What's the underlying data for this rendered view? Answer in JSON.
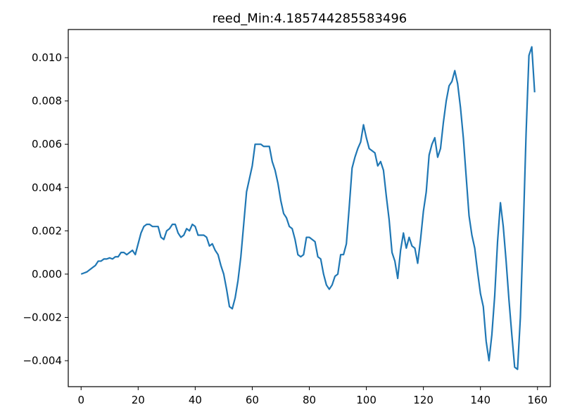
{
  "chart_data": {
    "type": "line",
    "title": "reed_Min:4.185744285583496",
    "xlabel": "",
    "ylabel": "",
    "xlim": [
      -4.5,
      164.5
    ],
    "ylim": [
      -0.0052,
      0.0113
    ],
    "x_ticks": [
      0,
      20,
      40,
      60,
      80,
      100,
      120,
      140,
      160
    ],
    "x_tick_labels": [
      "0",
      "20",
      "40",
      "60",
      "80",
      "100",
      "120",
      "140",
      "160"
    ],
    "y_ticks": [
      -0.004,
      -0.002,
      0.0,
      0.002,
      0.004,
      0.006,
      0.008,
      0.01
    ],
    "y_tick_labels": [
      "−0.004",
      "−0.002",
      "0.000",
      "0.002",
      "0.004",
      "0.006",
      "0.008",
      "0.010"
    ],
    "grid": false,
    "series": [
      {
        "color": "#1f77b4",
        "x": [
          0,
          1,
          2,
          3,
          4,
          5,
          6,
          7,
          8,
          9,
          10,
          11,
          12,
          13,
          14,
          15,
          16,
          17,
          18,
          19,
          20,
          21,
          22,
          23,
          24,
          25,
          26,
          27,
          28,
          29,
          30,
          31,
          32,
          33,
          34,
          35,
          36,
          37,
          38,
          39,
          40,
          41,
          42,
          43,
          44,
          45,
          46,
          47,
          48,
          49,
          50,
          51,
          52,
          53,
          54,
          55,
          56,
          57,
          58,
          59,
          60,
          61,
          62,
          63,
          64,
          65,
          66,
          67,
          68,
          69,
          70,
          71,
          72,
          73,
          74,
          75,
          76,
          77,
          78,
          79,
          80,
          81,
          82,
          83,
          84,
          85,
          86,
          87,
          88,
          89,
          90,
          91,
          92,
          93,
          94,
          95,
          96,
          97,
          98,
          99,
          100,
          101,
          102,
          103,
          104,
          105,
          106,
          107,
          108,
          109,
          110,
          111,
          112,
          113,
          114,
          115,
          116,
          117,
          118,
          119,
          120,
          121,
          122,
          123,
          124,
          125,
          126,
          127,
          128,
          129,
          130,
          131,
          132,
          133,
          134,
          135,
          136,
          137,
          138,
          139,
          140,
          141,
          142,
          143,
          144,
          145,
          146,
          147,
          148,
          149,
          150,
          151,
          152,
          153,
          154,
          155,
          156,
          157,
          158,
          159
        ],
        "y": [
          0.0,
          5e-05,
          0.0001,
          0.0002,
          0.0003,
          0.0004,
          0.0006,
          0.0006,
          0.0007,
          0.0007,
          0.00075,
          0.0007,
          0.0008,
          0.0008,
          0.001,
          0.001,
          0.0009,
          0.001,
          0.0011,
          0.0009,
          0.0014,
          0.0019,
          0.0022,
          0.0023,
          0.0023,
          0.0022,
          0.0022,
          0.0022,
          0.0017,
          0.0016,
          0.002,
          0.0021,
          0.0023,
          0.0023,
          0.0019,
          0.0017,
          0.0018,
          0.0021,
          0.002,
          0.0023,
          0.0022,
          0.0018,
          0.0018,
          0.0018,
          0.0017,
          0.0013,
          0.0014,
          0.0011,
          0.0009,
          0.0004,
          0.0,
          -0.0007,
          -0.0015,
          -0.0016,
          -0.0011,
          -0.0003,
          0.0008,
          0.0023,
          0.0038,
          0.0044,
          0.005,
          0.006,
          0.006,
          0.006,
          0.0059,
          0.0059,
          0.0059,
          0.0052,
          0.0048,
          0.0042,
          0.0034,
          0.0028,
          0.0026,
          0.0022,
          0.0021,
          0.0016,
          0.0009,
          0.0008,
          0.0009,
          0.0017,
          0.0017,
          0.0016,
          0.0015,
          0.0008,
          0.0007,
          0.0,
          -0.0005,
          -0.0007,
          -0.0005,
          -0.0001,
          0.0,
          0.0009,
          0.0009,
          0.0014,
          0.0031,
          0.0049,
          0.0054,
          0.0058,
          0.0061,
          0.0069,
          0.0063,
          0.0058,
          0.0057,
          0.0056,
          0.005,
          0.0052,
          0.0048,
          0.0036,
          0.0025,
          0.001,
          0.0006,
          -0.0002,
          0.0011,
          0.0019,
          0.0012,
          0.0017,
          0.0013,
          0.0012,
          0.0005,
          0.0016,
          0.0029,
          0.0038,
          0.0055,
          0.006,
          0.0063,
          0.0054,
          0.0058,
          0.007,
          0.008,
          0.0087,
          0.0089,
          0.0094,
          0.0088,
          0.0077,
          0.0063,
          0.0045,
          0.0027,
          0.0018,
          0.0012,
          0.0001,
          -0.0009,
          -0.0015,
          -0.0031,
          -0.004,
          -0.0028,
          -0.001,
          0.0015,
          0.0033,
          0.0022,
          0.0006,
          -0.0012,
          -0.0028,
          -0.0043,
          -0.0044,
          -0.002,
          0.002,
          0.0065,
          0.0101,
          0.0105,
          0.0084
        ]
      }
    ]
  }
}
